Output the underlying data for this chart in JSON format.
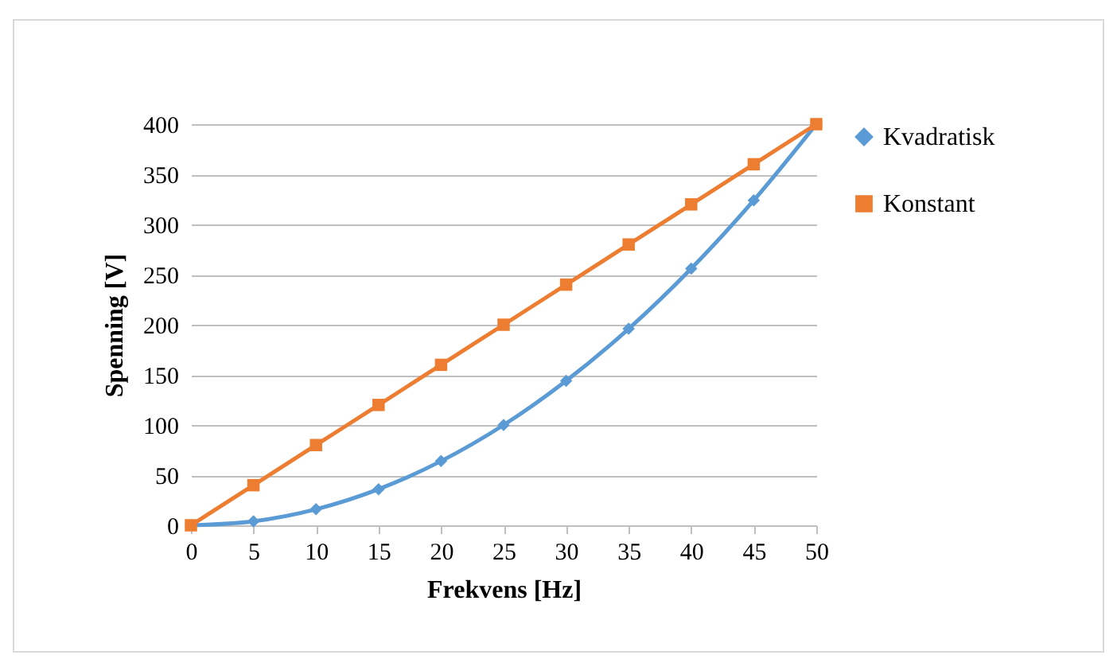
{
  "chart_data": {
    "type": "line",
    "xlabel": "Frekvens [Hz]",
    "ylabel": "Spenning [V]",
    "x": [
      0,
      5,
      10,
      15,
      20,
      25,
      30,
      35,
      40,
      45,
      50
    ],
    "series": [
      {
        "name": "Kvadratisk",
        "color": "#5b9bd5",
        "marker": "diamond",
        "values": [
          0,
          4,
          16,
          36,
          64,
          100,
          144,
          196,
          256,
          324,
          400
        ]
      },
      {
        "name": "Konstant",
        "color": "#ed7d31",
        "marker": "square",
        "values": [
          0,
          40,
          80,
          120,
          160,
          200,
          240,
          280,
          320,
          360,
          400
        ]
      }
    ],
    "xlim": [
      0,
      50
    ],
    "xticks": [
      0,
      5,
      10,
      15,
      20,
      25,
      30,
      35,
      40,
      45,
      50
    ],
    "ylim": [
      0,
      400
    ],
    "yticks": [
      0,
      50,
      100,
      150,
      200,
      250,
      300,
      350,
      400
    ],
    "grid": "y",
    "legend": "right",
    "line_style": "solid"
  }
}
